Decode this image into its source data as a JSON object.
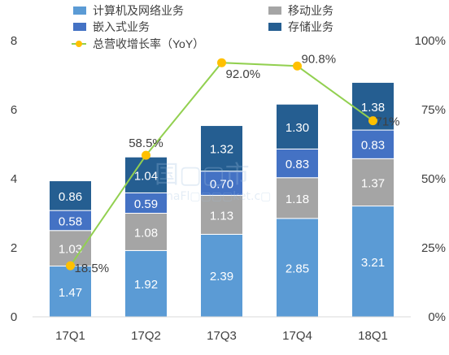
{
  "chart_data": {
    "type": "bar",
    "categories": [
      "17Q1",
      "17Q2",
      "17Q3",
      "17Q4",
      "18Q1"
    ],
    "series": [
      {
        "name": "计算机及网络业务",
        "values": [
          1.47,
          1.92,
          2.39,
          2.85,
          3.21
        ],
        "color": "#5b9bd5"
      },
      {
        "name": "移动业务",
        "values": [
          1.03,
          1.08,
          1.13,
          1.18,
          1.37
        ],
        "color": "#a5a5a5"
      },
      {
        "name": "嵌入式业务",
        "values": [
          0.58,
          0.59,
          0.7,
          0.83,
          0.83
        ],
        "color": "#4472c4"
      },
      {
        "name": "存储业务",
        "values": [
          0.86,
          1.04,
          1.32,
          1.3,
          1.38
        ],
        "color": "#255e91"
      }
    ],
    "line_series": {
      "name": "总营收增长率（YoY）",
      "values": [
        18.5,
        58.5,
        92.0,
        90.8,
        71
      ],
      "labels": [
        "18.5%",
        "58.5%",
        "92.0%",
        "90.8%",
        "71%"
      ],
      "line_color": "#92d050",
      "marker_color": "#ffc000"
    },
    "y_left": {
      "ticks": [
        0,
        2,
        4,
        6,
        8
      ],
      "ylim": [
        0,
        8
      ]
    },
    "y_right": {
      "ticks": [
        "0%",
        "25%",
        "50%",
        "75%",
        "100%"
      ],
      "ylim": [
        0,
        100
      ]
    },
    "legend_position": "top",
    "grid": false,
    "watermark": "国▢▢市",
    "watermark_sub": "naFl▢▢▢▢ket.c▢"
  }
}
